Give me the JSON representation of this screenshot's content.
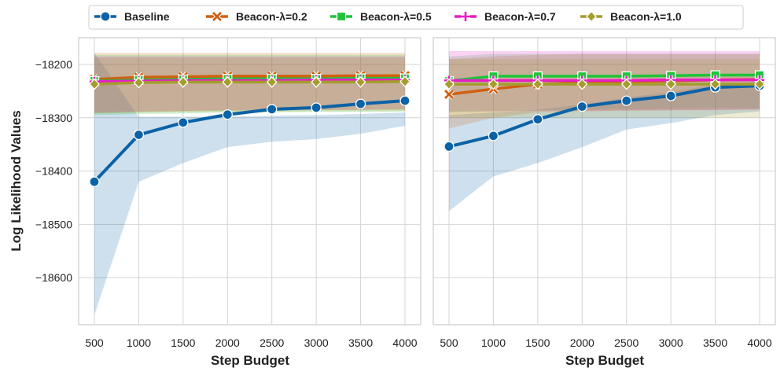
{
  "chart_data": [
    {
      "type": "line",
      "panel": "left",
      "x": [
        500,
        1000,
        1500,
        2000,
        2500,
        3000,
        3500,
        4000
      ],
      "xlabel": "Step Budget",
      "ylabel": "Log Likelihood Values",
      "ylim": [
        -18690,
        -18150
      ],
      "yticks": [
        -18200,
        -18300,
        -18400,
        -18500,
        -18600
      ],
      "grid": true,
      "series": [
        {
          "name": "Baseline",
          "color": "#0b62a6",
          "marker": "circle",
          "values": [
            -18420,
            -18332,
            -18309,
            -18294,
            -18284,
            -18281,
            -18274,
            -18268
          ],
          "band_lo": [
            -18670,
            -18420,
            -18385,
            -18355,
            -18345,
            -18340,
            -18330,
            -18315
          ],
          "band_hi": [
            -18178,
            -18298,
            -18298,
            -18298,
            -18296,
            -18295,
            -18293,
            -18290
          ]
        },
        {
          "name": "Beacon-λ=0.2",
          "color": "#d1600f",
          "marker": "x",
          "values": [
            -18228,
            -18224,
            -18223,
            -18222,
            -18222,
            -18222,
            -18221,
            -18221
          ],
          "band_lo": [
            -18292,
            -18290,
            -18288,
            -18287,
            -18286,
            -18286,
            -18285,
            -18285
          ],
          "band_hi": [
            -18178,
            -18178,
            -18178,
            -18178,
            -18178,
            -18178,
            -18178,
            -18178
          ]
        },
        {
          "name": "Beacon-λ=0.5",
          "color": "#1ec43a",
          "marker": "square",
          "values": [
            -18231,
            -18229,
            -18228,
            -18227,
            -18227,
            -18227,
            -18226,
            -18226
          ],
          "band_lo": [
            -18295,
            -18293,
            -18292,
            -18290,
            -18290,
            -18289,
            -18289,
            -18288
          ],
          "band_hi": [
            -18182,
            -18182,
            -18182,
            -18182,
            -18182,
            -18182,
            -18182,
            -18182
          ]
        },
        {
          "name": "Beacon-λ=0.7",
          "color": "#e61fc6",
          "marker": "plus",
          "values": [
            -18232,
            -18231,
            -18230,
            -18230,
            -18230,
            -18229,
            -18229,
            -18229
          ],
          "band_lo": [
            -18290,
            -18288,
            -18287,
            -18286,
            -18286,
            -18285,
            -18285,
            -18284
          ],
          "band_hi": [
            -18185,
            -18185,
            -18185,
            -18185,
            -18185,
            -18185,
            -18185,
            -18185
          ]
        },
        {
          "name": "Beacon-λ=1.0",
          "color": "#a59c2e",
          "marker": "diamond",
          "values": [
            -18237,
            -18234,
            -18233,
            -18233,
            -18233,
            -18233,
            -18233,
            -18232
          ],
          "band_lo": [
            -18292,
            -18290,
            -18290,
            -18289,
            -18289,
            -18288,
            -18288,
            -18288
          ],
          "band_hi": [
            -18188,
            -18188,
            -18188,
            -18188,
            -18188,
            -18188,
            -18188,
            -18188
          ]
        }
      ]
    },
    {
      "type": "line",
      "panel": "right",
      "x": [
        500,
        1000,
        1500,
        2000,
        2500,
        3000,
        3500,
        4000
      ],
      "xlabel": "Step Budget",
      "ylim": [
        -18690,
        -18150
      ],
      "grid": true,
      "series": [
        {
          "name": "Baseline",
          "color": "#0b62a6",
          "marker": "circle",
          "values": [
            -18354,
            -18334,
            -18303,
            -18279,
            -18268,
            -18259,
            -18243,
            -18240
          ],
          "band_lo": [
            -18475,
            -18410,
            -18385,
            -18355,
            -18322,
            -18310,
            -18295,
            -18288
          ],
          "band_hi": [
            -18295,
            -18290,
            -18285,
            -18275,
            -18262,
            -18252,
            -18238,
            -18232
          ]
        },
        {
          "name": "Beacon-λ=0.2",
          "color": "#d1600f",
          "marker": "x",
          "values": [
            -18256,
            -18246,
            -18237,
            -18234,
            -18232,
            -18231,
            -18229,
            -18228
          ],
          "band_lo": [
            -18320,
            -18300,
            -18290,
            -18288,
            -18287,
            -18286,
            -18285,
            -18284
          ],
          "band_hi": [
            -18190,
            -18185,
            -18182,
            -18180,
            -18180,
            -18180,
            -18180,
            -18180
          ]
        },
        {
          "name": "Beacon-λ=0.5",
          "color": "#1ec43a",
          "marker": "square",
          "values": [
            -18231,
            -18222,
            -18222,
            -18222,
            -18222,
            -18221,
            -18220,
            -18220
          ],
          "band_lo": [
            -18290,
            -18288,
            -18286,
            -18285,
            -18284,
            -18283,
            -18282,
            -18282
          ],
          "band_hi": [
            -18185,
            -18180,
            -18180,
            -18180,
            -18180,
            -18180,
            -18180,
            -18180
          ]
        },
        {
          "name": "Beacon-λ=0.7",
          "color": "#e61fc6",
          "marker": "plus",
          "values": [
            -18230,
            -18230,
            -18230,
            -18230,
            -18230,
            -18229,
            -18229,
            -18229
          ],
          "band_lo": [
            -18288,
            -18288,
            -18287,
            -18287,
            -18286,
            -18286,
            -18286,
            -18285
          ],
          "band_hi": [
            -18175,
            -18175,
            -18175,
            -18175,
            -18175,
            -18175,
            -18175,
            -18175
          ]
        },
        {
          "name": "Beacon-λ=1.0",
          "color": "#a59c2e",
          "marker": "diamond",
          "values": [
            -18237,
            -18237,
            -18237,
            -18237,
            -18237,
            -18237,
            -18237,
            -18237
          ],
          "band_lo": [
            -18300,
            -18300,
            -18300,
            -18300,
            -18300,
            -18300,
            -18300,
            -18300
          ],
          "band_hi": [
            -18190,
            -18190,
            -18190,
            -18190,
            -18190,
            -18190,
            -18190,
            -18190
          ]
        }
      ]
    }
  ],
  "legend": {
    "placement": "top-center",
    "items": [
      "Baseline",
      "Beacon-λ=0.2",
      "Beacon-λ=0.5",
      "Beacon-λ=0.7",
      "Beacon-λ=1.0"
    ]
  }
}
